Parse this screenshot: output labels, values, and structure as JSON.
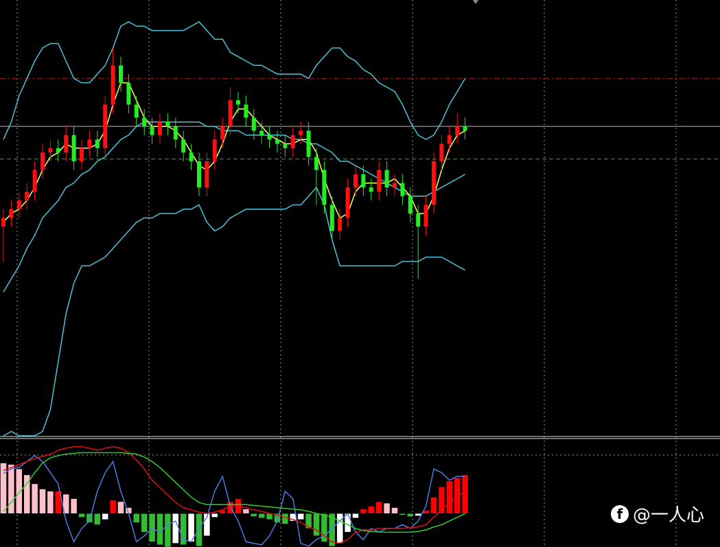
{
  "watermark": "@一人心",
  "chart_data": [
    {
      "type": "candlestick",
      "ylim": [
        0,
        100
      ],
      "up_color": "#ff1010",
      "down_color": "#22ee22",
      "open": [
        48,
        50,
        52,
        54,
        56,
        61,
        65,
        66,
        65,
        69,
        63,
        66,
        68,
        66,
        76,
        85,
        81,
        76,
        73,
        71,
        69,
        72,
        71,
        68,
        65,
        63,
        57,
        63,
        68,
        71,
        77,
        76,
        73,
        70,
        69,
        68,
        67,
        66,
        69,
        70,
        64,
        61,
        53,
        47,
        50,
        57,
        60,
        57,
        56,
        61,
        57,
        58,
        55,
        51,
        48,
        53,
        63,
        67,
        69,
        71
      ],
      "high": [
        52,
        54,
        56,
        58,
        63,
        67,
        68,
        68,
        71,
        71,
        68,
        70,
        70,
        78,
        89,
        87,
        83,
        78,
        75,
        73,
        74,
        74,
        73,
        70,
        67,
        65,
        65,
        70,
        73,
        80,
        79,
        78,
        75,
        72,
        71,
        70,
        69,
        71,
        72,
        72,
        66,
        63,
        55,
        52,
        59,
        62,
        62,
        59,
        63,
        63,
        60,
        60,
        57,
        53,
        55,
        65,
        69,
        71,
        74,
        73
      ],
      "low": [
        40,
        48,
        50,
        52,
        54,
        59,
        63,
        63,
        63,
        61,
        61,
        64,
        64,
        64,
        74,
        79,
        74,
        71,
        69,
        67,
        67,
        69,
        66,
        63,
        61,
        55,
        55,
        61,
        66,
        69,
        74,
        71,
        68,
        67,
        66,
        65,
        64,
        64,
        67,
        62,
        53,
        51,
        45,
        45,
        48,
        55,
        55,
        54,
        54,
        55,
        55,
        53,
        49,
        36,
        46,
        51,
        61,
        65,
        67,
        68
      ],
      "close": [
        50,
        52,
        54,
        56,
        61,
        65,
        66,
        65,
        69,
        63,
        66,
        68,
        66,
        76,
        85,
        81,
        76,
        73,
        71,
        69,
        72,
        71,
        68,
        65,
        63,
        57,
        63,
        68,
        71,
        77,
        76,
        73,
        70,
        69,
        68,
        67,
        66,
        69,
        70,
        64,
        61,
        53,
        47,
        50,
        57,
        60,
        57,
        56,
        61,
        57,
        58,
        55,
        51,
        48,
        53,
        63,
        67,
        69,
        71,
        70
      ],
      "series": [
        {
          "color": "#4fc3d9",
          "values": [
            68,
            72,
            78,
            82,
            86,
            89,
            90,
            90,
            86,
            82,
            81,
            81,
            83,
            85,
            89,
            94,
            95,
            94,
            94,
            93,
            93,
            93,
            93,
            93,
            94,
            95,
            93,
            91,
            91,
            88,
            87,
            86,
            85,
            85,
            84,
            83,
            83,
            83,
            83,
            82,
            85,
            87,
            89,
            89,
            87,
            86,
            84,
            83,
            81,
            80,
            79,
            76,
            72,
            69,
            68,
            69,
            72,
            76,
            79,
            82
          ]
        },
        {
          "color": "#4fc3d9",
          "values": [
            33,
            36,
            39,
            43,
            46,
            50,
            52,
            54,
            57,
            58,
            60,
            61,
            63,
            64,
            66,
            68,
            69,
            71,
            72,
            72,
            72,
            72,
            72,
            72,
            72,
            72,
            71,
            71,
            70,
            70,
            70,
            69,
            69,
            69,
            69,
            69,
            69,
            68,
            68,
            67,
            67,
            66,
            65,
            63,
            63,
            62,
            61,
            60,
            59,
            58,
            57,
            56,
            55,
            55,
            55,
            56,
            57,
            58,
            59,
            60
          ]
        },
        {
          "color": "#4fc3d9",
          "values": [
            0,
            1,
            0,
            0,
            0,
            1,
            6,
            17,
            28,
            35,
            39,
            39,
            40,
            41,
            43,
            45,
            47,
            49,
            50,
            50,
            51,
            51,
            51,
            52,
            52,
            53,
            49,
            47,
            48,
            50,
            51,
            52,
            52,
            52,
            52,
            52,
            52,
            53,
            53,
            55,
            57,
            53,
            45,
            39,
            39,
            39,
            39,
            39,
            39,
            39,
            39,
            40,
            40,
            40,
            41,
            41,
            41,
            40,
            39,
            38
          ]
        },
        {
          "color": "#ffff66",
          "values": [
            49,
            51,
            52,
            54,
            57,
            61,
            64,
            65,
            67,
            66,
            66,
            66,
            67,
            70,
            76,
            81,
            81,
            77,
            73,
            71,
            71,
            71,
            70,
            68,
            65,
            62,
            61,
            63,
            67,
            72,
            75,
            75,
            73,
            71,
            69,
            68,
            67,
            67,
            68,
            68,
            65,
            59,
            54,
            50,
            51,
            56,
            58,
            58,
            58,
            58,
            59,
            57,
            55,
            51,
            51,
            55,
            61,
            66,
            69,
            70
          ]
        }
      ],
      "levels": [
        {
          "value": 82,
          "color": "#b22222",
          "style": "dashdot"
        },
        {
          "value": 71,
          "color": "#bbbbbb",
          "style": "solid"
        },
        {
          "value": 63.5,
          "color": "#3aa83a",
          "style": "dashed"
        }
      ]
    },
    {
      "type": "oscillator",
      "ylim": [
        -45,
        100
      ],
      "colors": {
        "rise_up": "#ff0000",
        "fall_up": "#ffc0cb",
        "fall_down": "#33bb33",
        "rise_down": "#ffffff"
      },
      "values": [
        68,
        66,
        60,
        52,
        40,
        33,
        30,
        30,
        26,
        20,
        -5,
        -12,
        -15,
        -8,
        18,
        16,
        8,
        -12,
        -25,
        -38,
        -42,
        -45,
        -40,
        -42,
        -38,
        -44,
        -30,
        -5,
        4,
        16,
        20,
        6,
        -4,
        -6,
        -8,
        -12,
        -14,
        -10,
        -8,
        -20,
        -30,
        -38,
        -44,
        -40,
        -25,
        -6,
        6,
        10,
        16,
        14,
        8,
        -2,
        -4,
        -3,
        4,
        22,
        36,
        44,
        48,
        52
      ],
      "series": [
        {
          "color": "#4a7fe0",
          "values": [
            54,
            60,
            62,
            70,
            78,
            70,
            55,
            40,
            -10,
            -38,
            -20,
            -10,
            30,
            55,
            70,
            30,
            0,
            -38,
            -30,
            -20,
            -25,
            -15,
            -10,
            -35,
            -38,
            -20,
            -5,
            30,
            50,
            10,
            -10,
            -38,
            -40,
            -42,
            -30,
            -10,
            30,
            20,
            -40,
            -44,
            -35,
            -30,
            -20,
            -10,
            0,
            -25,
            -35,
            -20,
            -25,
            -20,
            -20,
            -15,
            -20,
            -10,
            10,
            60,
            55,
            45,
            50,
            50
          ]
        },
        {
          "color": "#e01010",
          "values": [
            58,
            62,
            66,
            70,
            74,
            77,
            80,
            85,
            88,
            90,
            90,
            88,
            85,
            88,
            90,
            88,
            82,
            72,
            60,
            45,
            35,
            25,
            15,
            8,
            5,
            2,
            0,
            2,
            5,
            10,
            10,
            8,
            5,
            3,
            0,
            -2,
            -5,
            -8,
            -12,
            -18,
            -22,
            -30,
            -38,
            -40,
            -35,
            -25,
            -22,
            -22,
            -20,
            -20,
            -20,
            -20,
            -19,
            -18,
            -15,
            -5,
            5,
            15,
            22,
            30
          ]
        },
        {
          "color": "#33cc33",
          "values": [
            3,
            15,
            28,
            40,
            55,
            68,
            75,
            78,
            80,
            81,
            82,
            82,
            82,
            82,
            82,
            82,
            81,
            80,
            76,
            70,
            62,
            52,
            42,
            32,
            22,
            15,
            12,
            12,
            12,
            12,
            12,
            12,
            11,
            10,
            9,
            8,
            7,
            6,
            5,
            3,
            0,
            -2,
            -5,
            -10,
            -15,
            -20,
            -23,
            -24,
            -25,
            -25,
            -25,
            -25,
            -25,
            -24,
            -22,
            -18,
            -15,
            -10,
            -5,
            0
          ]
        }
      ],
      "yticks": [
        0
      ]
    }
  ]
}
